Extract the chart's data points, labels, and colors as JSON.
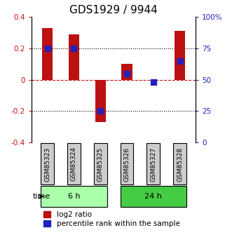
{
  "title": "GDS1929 / 9944",
  "samples": [
    "GSM85323",
    "GSM85324",
    "GSM85325",
    "GSM85326",
    "GSM85327",
    "GSM85328"
  ],
  "log2_ratios": [
    0.33,
    0.29,
    -0.27,
    0.1,
    0.0,
    0.31
  ],
  "percentile_ranks": [
    75,
    75,
    25,
    55,
    48,
    65
  ],
  "ylim": [
    -0.4,
    0.4
  ],
  "yticks": [
    -0.4,
    -0.2,
    0.0,
    0.2,
    0.4
  ],
  "ytick_labels": [
    "-0.4",
    "-0.2",
    "0",
    "0.2",
    "0.4"
  ],
  "right_yticks": [
    0,
    25,
    50,
    75,
    100
  ],
  "right_ytick_labels": [
    "0",
    "25",
    "50",
    "75",
    "100%"
  ],
  "groups": [
    {
      "label": "6 h",
      "indices": [
        0,
        1,
        2
      ],
      "color": "#aaffaa"
    },
    {
      "label": "24 h",
      "indices": [
        3,
        4,
        5
      ],
      "color": "#44cc44"
    }
  ],
  "bar_color": "#bb1111",
  "blue_color": "#2222bb",
  "bar_width": 0.4,
  "blue_marker_size": 6,
  "background_color": "#ffffff",
  "plot_bg_color": "#ffffff",
  "sample_box_color": "#cccccc",
  "hline_color": "#cc1111",
  "hline_style": "dashed",
  "grid_color": "#000000",
  "grid_style": "dotted",
  "title_fontsize": 11,
  "tick_fontsize": 7.5,
  "label_fontsize": 8,
  "legend_fontsize": 7.5,
  "time_label": "time"
}
